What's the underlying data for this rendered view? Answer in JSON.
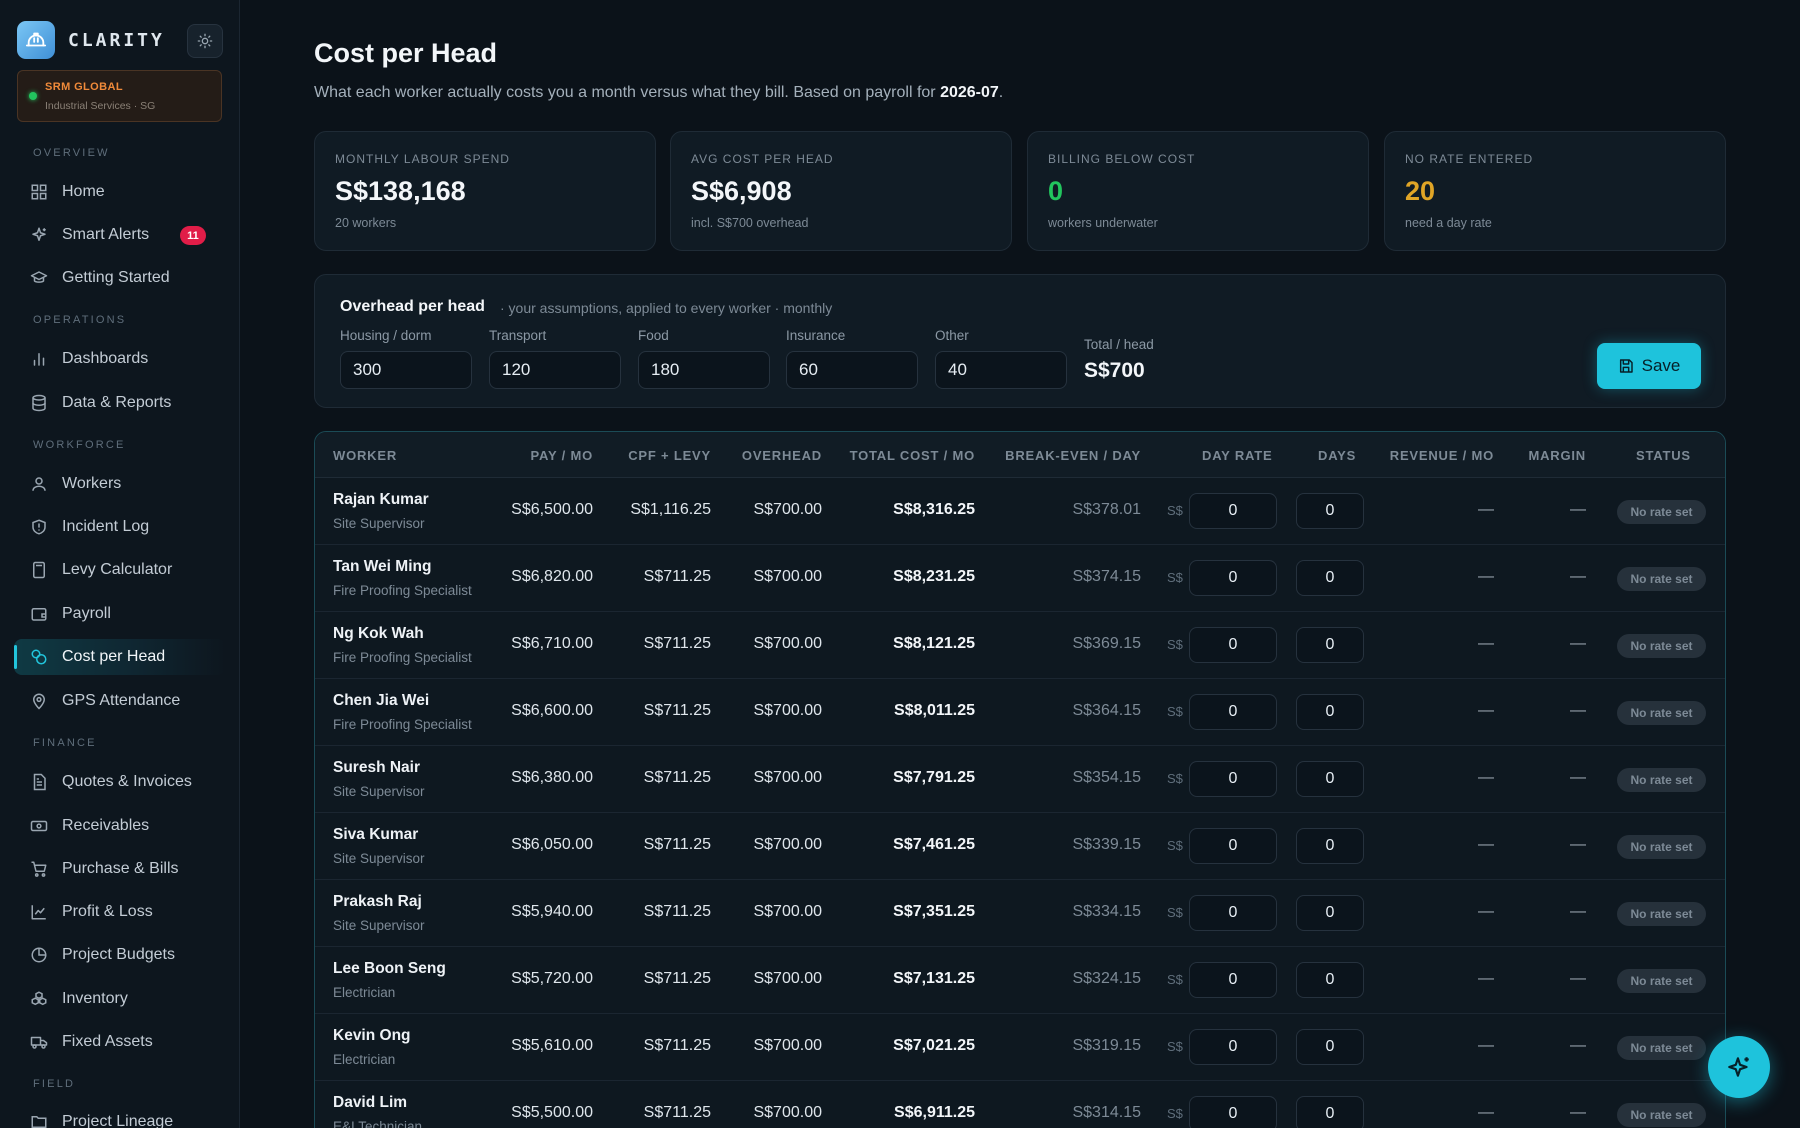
{
  "brand": {
    "name": "CLARITY"
  },
  "org": {
    "name": "SRM GLOBAL",
    "sub": "Industrial Services · SG"
  },
  "nav": {
    "sections": {
      "overview": "OVERVIEW",
      "operations": "OPERATIONS",
      "workforce": "WORKFORCE",
      "finance": "FINANCE",
      "field": "FIELD"
    },
    "items": {
      "home": "Home",
      "smart_alerts": "Smart Alerts",
      "smart_alerts_badge": "11",
      "getting_started": "Getting Started",
      "dashboards": "Dashboards",
      "data_reports": "Data & Reports",
      "workers": "Workers",
      "incident_log": "Incident Log",
      "levy_calculator": "Levy Calculator",
      "payroll": "Payroll",
      "cost_per_head": "Cost per Head",
      "gps_attendance": "GPS Attendance",
      "quotes_invoices": "Quotes & Invoices",
      "receivables": "Receivables",
      "purchase_bills": "Purchase & Bills",
      "profit_loss": "Profit & Loss",
      "project_budgets": "Project Budgets",
      "inventory": "Inventory",
      "fixed_assets": "Fixed Assets",
      "project_lineage": "Project Lineage"
    }
  },
  "header": {
    "title": "Cost per Head",
    "subtitle_pre": "What each worker actually costs you a month versus what they bill. Based on payroll for ",
    "subtitle_period": "2026-07",
    "subtitle_post": "."
  },
  "stats": [
    {
      "label": "MONTHLY LABOUR SPEND",
      "value": "S$138,168",
      "foot": "20 workers",
      "color": "#f3f6f9"
    },
    {
      "label": "AVG COST PER HEAD",
      "value": "S$6,908",
      "foot": "incl. S$700 overhead",
      "color": "#f3f6f9"
    },
    {
      "label": "BILLING BELOW COST",
      "value": "0",
      "foot": "workers underwater",
      "color": "#22c55e"
    },
    {
      "label": "NO RATE ENTERED",
      "value": "20",
      "foot": "need a day rate",
      "color": "#e0a526"
    }
  ],
  "overhead": {
    "title": "Overhead per head",
    "note": "· your assumptions, applied to every worker · monthly",
    "fields": [
      {
        "label": "Housing / dorm",
        "value": "300"
      },
      {
        "label": "Transport",
        "value": "120"
      },
      {
        "label": "Food",
        "value": "180"
      },
      {
        "label": "Insurance",
        "value": "60"
      },
      {
        "label": "Other",
        "value": "40"
      }
    ],
    "total_label": "Total / head",
    "total_value": "S$700",
    "save_label": "Save"
  },
  "table": {
    "columns": {
      "worker": "WORKER",
      "pay": "PAY / MO",
      "cpf": "CPF + LEVY",
      "overhead": "OVERHEAD",
      "total": "TOTAL COST / MO",
      "breakeven": "BREAK-EVEN / DAY",
      "day_rate": "DAY RATE",
      "days": "DAYS",
      "revenue": "REVENUE / MO",
      "margin": "MARGIN",
      "status": "STATUS"
    },
    "currency_prefix": "S$",
    "rows": [
      {
        "name": "Rajan Kumar",
        "role": "Site Supervisor",
        "pay": "S$6,500.00",
        "cpf": "S$1,116.25",
        "overhead": "S$700.00",
        "total": "S$8,316.25",
        "breakeven": "S$378.01",
        "day_rate": "0",
        "days": "0",
        "revenue": "—",
        "margin": "—",
        "status": "No rate set"
      },
      {
        "name": "Tan Wei Ming",
        "role": "Fire Proofing Specialist",
        "pay": "S$6,820.00",
        "cpf": "S$711.25",
        "overhead": "S$700.00",
        "total": "S$8,231.25",
        "breakeven": "S$374.15",
        "day_rate": "0",
        "days": "0",
        "revenue": "—",
        "margin": "—",
        "status": "No rate set"
      },
      {
        "name": "Ng Kok Wah",
        "role": "Fire Proofing Specialist",
        "pay": "S$6,710.00",
        "cpf": "S$711.25",
        "overhead": "S$700.00",
        "total": "S$8,121.25",
        "breakeven": "S$369.15",
        "day_rate": "0",
        "days": "0",
        "revenue": "—",
        "margin": "—",
        "status": "No rate set"
      },
      {
        "name": "Chen Jia Wei",
        "role": "Fire Proofing Specialist",
        "pay": "S$6,600.00",
        "cpf": "S$711.25",
        "overhead": "S$700.00",
        "total": "S$8,011.25",
        "breakeven": "S$364.15",
        "day_rate": "0",
        "days": "0",
        "revenue": "—",
        "margin": "—",
        "status": "No rate set"
      },
      {
        "name": "Suresh Nair",
        "role": "Site Supervisor",
        "pay": "S$6,380.00",
        "cpf": "S$711.25",
        "overhead": "S$700.00",
        "total": "S$7,791.25",
        "breakeven": "S$354.15",
        "day_rate": "0",
        "days": "0",
        "revenue": "—",
        "margin": "—",
        "status": "No rate set"
      },
      {
        "name": "Siva Kumar",
        "role": "Site Supervisor",
        "pay": "S$6,050.00",
        "cpf": "S$711.25",
        "overhead": "S$700.00",
        "total": "S$7,461.25",
        "breakeven": "S$339.15",
        "day_rate": "0",
        "days": "0",
        "revenue": "—",
        "margin": "—",
        "status": "No rate set"
      },
      {
        "name": "Prakash Raj",
        "role": "Site Supervisor",
        "pay": "S$5,940.00",
        "cpf": "S$711.25",
        "overhead": "S$700.00",
        "total": "S$7,351.25",
        "breakeven": "S$334.15",
        "day_rate": "0",
        "days": "0",
        "revenue": "—",
        "margin": "—",
        "status": "No rate set"
      },
      {
        "name": "Lee Boon Seng",
        "role": "Electrician",
        "pay": "S$5,720.00",
        "cpf": "S$711.25",
        "overhead": "S$700.00",
        "total": "S$7,131.25",
        "breakeven": "S$324.15",
        "day_rate": "0",
        "days": "0",
        "revenue": "—",
        "margin": "—",
        "status": "No rate set"
      },
      {
        "name": "Kevin Ong",
        "role": "Electrician",
        "pay": "S$5,610.00",
        "cpf": "S$711.25",
        "overhead": "S$700.00",
        "total": "S$7,021.25",
        "breakeven": "S$319.15",
        "day_rate": "0",
        "days": "0",
        "revenue": "—",
        "margin": "—",
        "status": "No rate set"
      },
      {
        "name": "David Lim",
        "role": "E&I Technician",
        "pay": "S$5,500.00",
        "cpf": "S$711.25",
        "overhead": "S$700.00",
        "total": "S$6,911.25",
        "breakeven": "S$314.15",
        "day_rate": "0",
        "days": "0",
        "revenue": "—",
        "margin": "—",
        "status": "No rate set"
      }
    ]
  }
}
